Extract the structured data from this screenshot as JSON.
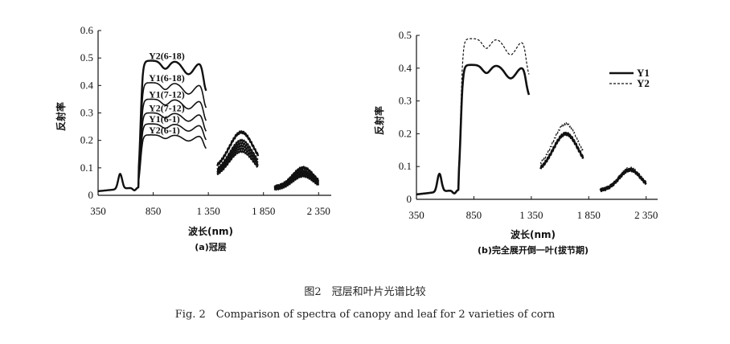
{
  "figure": {
    "caption_cn": "图2　冠层和叶片光谱比较",
    "caption_en": "Fig. 2　Comparison of spectra of canopy and leaf for 2 varieties of corn"
  },
  "chart_data": [
    {
      "type": "line",
      "subtitle": "(a)冠层",
      "xlabel": "波长(nm)",
      "ylabel": "反射率",
      "xlim": [
        350,
        2450
      ],
      "ylim": [
        0,
        0.6
      ],
      "xticks": [
        "350",
        "850",
        "1 350",
        "1 850",
        "2 350"
      ],
      "yticks": [
        "0",
        "0.1",
        "0.2",
        "0.3",
        "0.4",
        "0.5",
        "0.6"
      ],
      "grid": false,
      "legend": "inline labels",
      "band_segments": [
        [
          350,
          1330
        ],
        [
          1430,
          1800
        ],
        [
          1950,
          2350
        ]
      ],
      "series": [
        {
          "name": "Y2(6-18)",
          "nir": 0.49,
          "swir1": 0.23,
          "swir2": 0.1
        },
        {
          "name": "Y1(6-18)",
          "nir": 0.41,
          "swir1": 0.2,
          "swir2": 0.09
        },
        {
          "name": "Y1(7-12)",
          "nir": 0.35,
          "swir1": 0.19,
          "swir2": 0.085
        },
        {
          "name": "Y2(7-12)",
          "nir": 0.3,
          "swir1": 0.18,
          "swir2": 0.08
        },
        {
          "name": "Y1(6-1)",
          "nir": 0.26,
          "swir1": 0.17,
          "swir2": 0.075
        },
        {
          "name": "Y2(6-1)",
          "nir": 0.22,
          "swir1": 0.16,
          "swir2": 0.07
        }
      ]
    },
    {
      "type": "line",
      "subtitle": "(b)完全展开倒一叶(拔节期)",
      "xlabel": "波长(nm)",
      "ylabel": "反射率",
      "xlim": [
        350,
        2450
      ],
      "ylim": [
        0,
        0.5
      ],
      "xticks": [
        "350",
        "850",
        "1 350",
        "1 850",
        "2 350"
      ],
      "yticks": [
        "0",
        "0.1",
        "0.2",
        "0.3",
        "0.4",
        "0.5"
      ],
      "grid": false,
      "legend": "top-right",
      "band_segments": [
        [
          350,
          1330
        ],
        [
          1430,
          1800
        ],
        [
          1950,
          2350
        ]
      ],
      "series": [
        {
          "name": "Y1",
          "style": "solid",
          "nir": 0.41,
          "swir1": 0.2,
          "swir2": 0.09
        },
        {
          "name": "Y2",
          "style": "dashed",
          "nir": 0.49,
          "swir1": 0.23,
          "swir2": 0.095
        }
      ]
    }
  ]
}
